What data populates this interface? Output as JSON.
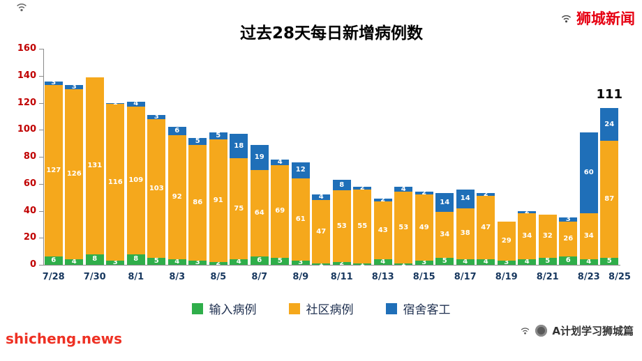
{
  "page": {
    "brand": "狮城新闻",
    "watermark": "shicheng.news",
    "credit": "A计划学习狮城篇"
  },
  "chart_data": {
    "type": "bar",
    "stacked": true,
    "title": "过去28天每日新增病例数",
    "categories": [
      "7/28",
      "7/29",
      "7/30",
      "7/31",
      "8/1",
      "8/2",
      "8/3",
      "8/4",
      "8/5",
      "8/6",
      "8/7",
      "8/8",
      "8/9",
      "8/10",
      "8/11",
      "8/12",
      "8/13",
      "8/14",
      "8/15",
      "8/16",
      "8/17",
      "8/18",
      "8/19",
      "8/20",
      "8/21",
      "8/22",
      "8/23",
      "8/24"
    ],
    "x_tick_labels": [
      "7/28",
      "7/30",
      "8/1",
      "8/3",
      "8/5",
      "8/7",
      "8/9",
      "8/11",
      "8/13",
      "8/15",
      "8/17",
      "8/19",
      "8/21",
      "8/23",
      "8/25"
    ],
    "series": [
      {
        "name": "输入病例",
        "color": "#2fae4a",
        "values": [
          6,
          4,
          8,
          3,
          8,
          5,
          4,
          3,
          2,
          4,
          6,
          5,
          3,
          1,
          2,
          1,
          4,
          1,
          3,
          5,
          4,
          4,
          3,
          4,
          5,
          6,
          4,
          5
        ]
      },
      {
        "name": "社区病例",
        "color": "#f5a81c",
        "values": [
          127,
          126,
          131,
          116,
          109,
          103,
          92,
          86,
          91,
          75,
          64,
          69,
          61,
          47,
          53,
          55,
          43,
          53,
          49,
          34,
          38,
          47,
          29,
          34,
          32,
          26,
          34,
          87
        ]
      },
      {
        "name": "宿舍客工",
        "color": "#1f6fb8",
        "values": [
          3,
          3,
          0,
          1,
          4,
          3,
          6,
          5,
          5,
          18,
          19,
          4,
          12,
          4,
          8,
          2,
          2,
          4,
          2,
          14,
          14,
          2,
          0,
          2,
          0,
          3,
          60,
          24
        ]
      }
    ],
    "ylim": [
      0,
      160
    ],
    "y_ticks": [
      0,
      20,
      40,
      60,
      80,
      100,
      120,
      140,
      160
    ],
    "legend_position": "bottom",
    "grid": false,
    "annotation": {
      "text": "111",
      "bar_index": 27
    },
    "axis_colors": {
      "y_labels": "#c00000",
      "x_labels": "#17375e"
    }
  }
}
